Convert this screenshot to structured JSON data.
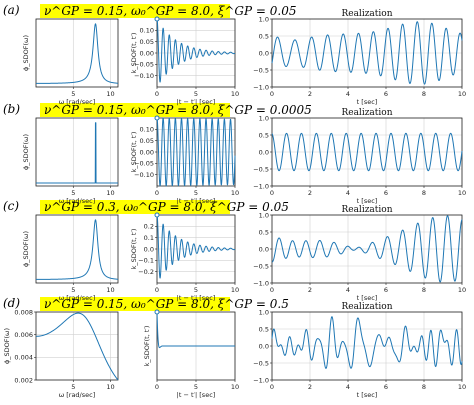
{
  "figure": {
    "rows": [
      {
        "label": "(a)",
        "params": "ν^GP = 0.15,  ω₀^GP = 8.0,  ξ^GP = 0.05"
      },
      {
        "label": "(b)",
        "params": "ν^GP = 0.15,  ω₀^GP = 8.0,  ξ^GP = 0.0005"
      },
      {
        "label": "(c)",
        "params": "ν^GP = 0.3,  ω₀^GP = 8.0,  ξ^GP = 0.05"
      },
      {
        "label": "(d)",
        "params": "ν^GP = 0.15,  ω₀^GP = 8.0,  ξ^GP = 0.5"
      }
    ]
  },
  "chart_data": [
    {
      "row": "a",
      "type": "line",
      "xlabel": "ω [rad/sec]",
      "ylabel": "ϕ_SDOF(ω)",
      "xticks": [
        "5",
        "10"
      ],
      "xlim": [
        0,
        11
      ],
      "yticks": [],
      "series": [
        {
          "shape": "psd",
          "omega0": 8.0,
          "xi": 0.05
        }
      ]
    },
    {
      "row": "a",
      "type": "line",
      "xlabel": "|t − t′| [sec]",
      "ylabel": "k_SDOF(t, t′)",
      "xticks": [
        "0",
        "5",
        "10"
      ],
      "yticks": [
        "0.10",
        "0.05",
        "0.00",
        "−0.05",
        "−0.10"
      ],
      "xlim": [
        0,
        10
      ],
      "ylim": [
        -0.15,
        0.15
      ],
      "series": [
        {
          "shape": "kernel",
          "variance": 0.15,
          "omega0": 8.0,
          "xi": 0.05
        }
      ]
    },
    {
      "row": "a",
      "type": "line",
      "title": "Realization",
      "xlabel": "t [sec]",
      "xticks": [
        "0",
        "2",
        "4",
        "6",
        "8",
        "10"
      ],
      "yticks": [
        "1.0",
        "0.5",
        "0.0",
        "−0.5",
        "−1.0"
      ],
      "xlim": [
        0,
        10
      ],
      "ylim": [
        -1.0,
        1.0
      ],
      "series": [
        {
          "shape": "realization",
          "omega0": 8.0,
          "xi": 0.05,
          "amplitude": 0.8
        }
      ]
    },
    {
      "row": "b",
      "type": "line",
      "xlabel": "ω [rad/sec]",
      "ylabel": "ϕ_SDOF(ω)",
      "xticks": [
        "5",
        "10"
      ],
      "xlim": [
        0,
        11
      ],
      "yticks": [],
      "series": [
        {
          "shape": "psd",
          "omega0": 8.0,
          "xi": 0.0005
        }
      ]
    },
    {
      "row": "b",
      "type": "line",
      "xlabel": "|t − t′| [sec]",
      "ylabel": "k_SDOF(t, t′)",
      "xticks": [
        "0",
        "5",
        "10"
      ],
      "yticks": [
        "0.10",
        "0.05",
        "0.00",
        "−0.05",
        "−0.10"
      ],
      "xlim": [
        0,
        10
      ],
      "ylim": [
        -0.15,
        0.15
      ],
      "series": [
        {
          "shape": "kernel",
          "variance": 0.15,
          "omega0": 8.0,
          "xi": 0.0005
        }
      ]
    },
    {
      "row": "b",
      "type": "line",
      "title": "Realization",
      "xlabel": "t [sec]",
      "xticks": [
        "0",
        "2",
        "4",
        "6",
        "8",
        "10"
      ],
      "yticks": [
        "1.0",
        "0.5",
        "0.0",
        "−0.5",
        "−1.0"
      ],
      "xlim": [
        0,
        10
      ],
      "ylim": [
        -1.0,
        1.0
      ],
      "series": [
        {
          "shape": "realization",
          "omega0": 8.0,
          "xi": 0.0005,
          "amplitude": 0.55
        }
      ]
    },
    {
      "row": "c",
      "type": "line",
      "xlabel": "ω [rad/sec]",
      "ylabel": "ϕ_SDOF(ω)",
      "xticks": [
        "5",
        "10"
      ],
      "xlim": [
        0,
        11
      ],
      "yticks": [],
      "series": [
        {
          "shape": "psd",
          "omega0": 8.0,
          "xi": 0.05
        }
      ]
    },
    {
      "row": "c",
      "type": "line",
      "xlabel": "|t − t′| [sec]",
      "ylabel": "k_SDOF(t, t′)",
      "xticks": [
        "0",
        "5",
        "10"
      ],
      "yticks": [
        "0.2",
        "0.1",
        "0.0",
        "−0.1",
        "−0.2"
      ],
      "xlim": [
        0,
        10
      ],
      "ylim": [
        -0.3,
        0.3
      ],
      "series": [
        {
          "shape": "kernel",
          "variance": 0.3,
          "omega0": 8.0,
          "xi": 0.05
        }
      ]
    },
    {
      "row": "c",
      "type": "line",
      "title": "Realization",
      "xlabel": "t [sec]",
      "xticks": [
        "0",
        "2",
        "4",
        "6",
        "8",
        "10"
      ],
      "yticks": [
        "1.0",
        "0.5",
        "0.0",
        "−0.5",
        "−1.0"
      ],
      "xlim": [
        0,
        10
      ],
      "ylim": [
        -1.0,
        1.0
      ],
      "series": [
        {
          "shape": "realization",
          "omega0": 8.0,
          "xi": 0.05,
          "amplitude": 0.85
        }
      ]
    },
    {
      "row": "d",
      "type": "line",
      "xlabel": "ω [rad/sec]",
      "ylabel": "ϕ_SDOF(ω)",
      "xticks": [
        "5",
        "10"
      ],
      "yticks": [
        "0.008",
        "0.006",
        "0.004",
        "0.002"
      ],
      "xlim": [
        0,
        11
      ],
      "ylim": [
        0.002,
        0.008
      ],
      "series": [
        {
          "shape": "psd",
          "omega0": 8.0,
          "xi": 0.5
        }
      ]
    },
    {
      "row": "d",
      "type": "line",
      "xlabel": "|t − t′| [sec]",
      "ylabel": "k_SDOF(t, t′)",
      "xticks": [
        "0",
        "5",
        "10"
      ],
      "yticks": [],
      "xlim": [
        0,
        10
      ],
      "ylim": [
        -0.15,
        0.15
      ],
      "series": [
        {
          "shape": "kernel",
          "variance": 0.15,
          "omega0": 8.0,
          "xi": 0.5
        }
      ]
    },
    {
      "row": "d",
      "type": "line",
      "title": "Realization",
      "xlabel": "t [sec]",
      "xticks": [
        "0",
        "2",
        "4",
        "6",
        "8",
        "10"
      ],
      "yticks": [
        "1.0",
        "0.5",
        "0.0",
        "−0.5",
        "−1.0"
      ],
      "xlim": [
        0,
        10
      ],
      "ylim": [
        -1.0,
        1.0
      ],
      "series": [
        {
          "shape": "realization",
          "omega0": 8.0,
          "xi": 0.5,
          "amplitude": 0.75
        }
      ]
    }
  ],
  "style": {
    "line_color": "#1f77b4",
    "highlight_color": "#ffff00",
    "grid_color": "#d0d0d0"
  }
}
